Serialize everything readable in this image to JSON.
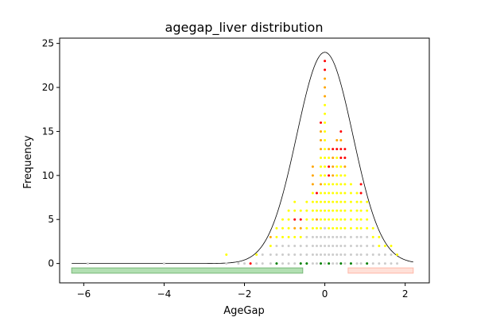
{
  "chart_data": {
    "type": "scatter",
    "title": "agegap_liver distribution",
    "xlabel": "AgeGap",
    "ylabel": "Frequency",
    "xlim": [
      -6.6,
      2.6
    ],
    "ylim": [
      -2.2,
      25.6
    ],
    "x_ticks": [
      -6,
      -4,
      -2,
      0,
      2
    ],
    "x_tick_labels": [
      "−6",
      "−4",
      "−2",
      "0",
      "2"
    ],
    "y_ticks": [
      0,
      5,
      10,
      15,
      20,
      25
    ],
    "y_tick_labels": [
      "0",
      "5",
      "10",
      "15",
      "20",
      "25"
    ],
    "grid": false,
    "colors": {
      "curve": "#000000",
      "normal": "#cccccc",
      "mild": "#ffff00",
      "moderate": "#ffa500",
      "high": "#ff0000",
      "low": "#008000",
      "negative_band_fill": "#b2dfb2",
      "negative_band_edge": "#78b878",
      "positive_band_fill": "#ffe0d8",
      "positive_band_edge": "#ffb8a8"
    },
    "bands": [
      {
        "x_range": [
          -6.3,
          -0.55
        ],
        "y_range": [
          -1.1,
          -0.5
        ],
        "color": "negative_band"
      },
      {
        "x_range": [
          0.58,
          2.2
        ],
        "y_range": [
          -1.1,
          -0.5
        ],
        "color": "positive_band"
      }
    ],
    "curve": {
      "type": "normal",
      "mean": 0.0,
      "sd": 0.7,
      "peak": 24,
      "x_range": [
        -6.3,
        2.2
      ]
    },
    "columns": [
      {
        "x": -5.9,
        "count": 0,
        "colors": [
          "normal"
        ]
      },
      {
        "x": -4.0,
        "count": 0,
        "colors": [
          "normal"
        ]
      },
      {
        "x": -2.45,
        "count": 1,
        "colors": [
          "normal",
          "mild"
        ]
      },
      {
        "x": -2.15,
        "count": 0,
        "colors": [
          "normal"
        ]
      },
      {
        "x": -2.0,
        "count": 0,
        "colors": [
          "normal"
        ]
      },
      {
        "x": -1.85,
        "count": 0,
        "colors": [
          "high"
        ]
      },
      {
        "x": -1.7,
        "count": 1,
        "colors": [
          "normal",
          "mild"
        ]
      },
      {
        "x": -1.55,
        "count": 1,
        "colors": [
          "normal",
          "normal"
        ]
      },
      {
        "x": -1.35,
        "count": 3,
        "colors": [
          "normal",
          "normal",
          "mild",
          "moderate"
        ]
      },
      {
        "x": -1.2,
        "count": 4,
        "colors": [
          "green",
          "normal",
          "normal",
          "mild",
          "mild"
        ]
      },
      {
        "x": -1.05,
        "count": 5,
        "colors": [
          "normal",
          "normal",
          "normal",
          "mild",
          "mild",
          "mild"
        ]
      },
      {
        "x": -0.9,
        "count": 6,
        "colors": [
          "normal",
          "normal",
          "normal",
          "mild",
          "mild",
          "mild",
          "mild"
        ]
      },
      {
        "x": -0.75,
        "count": 7,
        "colors": [
          "normal",
          "normal",
          "normal",
          "mild",
          "moderate",
          "high",
          "mild",
          "mild"
        ]
      },
      {
        "x": -0.6,
        "count": 6,
        "colors": [
          "green",
          "normal",
          "normal",
          "mild",
          "moderate",
          "high",
          "mild"
        ]
      },
      {
        "x": -0.45,
        "count": 7,
        "colors": [
          "green",
          "normal",
          "normal",
          "normal",
          "mild",
          "mild",
          "mild",
          "mild"
        ]
      },
      {
        "x": -0.3,
        "count": 11,
        "colors": [
          "normal",
          "normal",
          "normal",
          "normal",
          "mild",
          "mild",
          "mild",
          "mild",
          "mild",
          "moderate",
          "moderate",
          "moderate"
        ]
      },
      {
        "x": -0.2,
        "count": 8,
        "colors": [
          "normal",
          "normal",
          "normal",
          "normal",
          "mild",
          "moderate",
          "mild",
          "mild",
          "high"
        ]
      },
      {
        "x": -0.1,
        "count": 16,
        "colors": [
          "green",
          "normal",
          "normal",
          "normal",
          "mild",
          "mild",
          "mild",
          "mild",
          "mild",
          "moderate",
          "mild",
          "mild",
          "mild",
          "moderate",
          "moderate",
          "moderate",
          "high"
        ]
      },
      {
        "x": 0.0,
        "count": 23,
        "colors": [
          "normal",
          "normal",
          "normal",
          "normal",
          "normal",
          "mild",
          "mild",
          "mild",
          "mild",
          "mild",
          "mild",
          "mild",
          "mild",
          "mild",
          "mild",
          "mild",
          "mild",
          "mild",
          "mild",
          "moderate",
          "moderate",
          "moderate",
          "high",
          "high"
        ]
      },
      {
        "x": 0.1,
        "count": 13,
        "colors": [
          "green",
          "normal",
          "normal",
          "normal",
          "mild",
          "mild",
          "mild",
          "mild",
          "mild",
          "mild",
          "high",
          "high",
          "mild",
          "moderate"
        ]
      },
      {
        "x": 0.2,
        "count": 13,
        "colors": [
          "normal",
          "normal",
          "normal",
          "normal",
          "mild",
          "mild",
          "mild",
          "mild",
          "mild",
          "mild",
          "moderate",
          "moderate",
          "moderate",
          "high"
        ]
      },
      {
        "x": 0.3,
        "count": 14,
        "colors": [
          "normal",
          "normal",
          "normal",
          "normal",
          "mild",
          "mild",
          "mild",
          "mild",
          "mild",
          "mild",
          "mild",
          "mild",
          "mild",
          "high",
          "moderate"
        ]
      },
      {
        "x": 0.4,
        "count": 15,
        "colors": [
          "green",
          "normal",
          "normal",
          "normal",
          "mild",
          "mild",
          "mild",
          "mild",
          "mild",
          "mild",
          "mild",
          "mild",
          "high",
          "high",
          "moderate",
          "high"
        ]
      },
      {
        "x": 0.5,
        "count": 13,
        "colors": [
          "normal",
          "normal",
          "normal",
          "normal",
          "mild",
          "mild",
          "mild",
          "mild",
          "mild",
          "mild",
          "mild",
          "moderate",
          "high",
          "high"
        ]
      },
      {
        "x": 0.65,
        "count": 9,
        "colors": [
          "green",
          "normal",
          "normal",
          "normal",
          "mild",
          "mild",
          "mild",
          "mild",
          "mild",
          "mild"
        ]
      },
      {
        "x": 0.8,
        "count": 8,
        "colors": [
          "normal",
          "normal",
          "normal",
          "normal",
          "mild",
          "mild",
          "mild",
          "mild",
          "mild"
        ]
      },
      {
        "x": 0.9,
        "count": 9,
        "colors": [
          "normal",
          "normal",
          "normal",
          "normal",
          "mild",
          "mild",
          "mild",
          "mild",
          "high",
          "high"
        ]
      },
      {
        "x": 1.05,
        "count": 7,
        "colors": [
          "green",
          "normal",
          "normal",
          "normal",
          "mild",
          "mild",
          "mild",
          "mild"
        ]
      },
      {
        "x": 1.2,
        "count": 4,
        "colors": [
          "normal",
          "normal",
          "normal",
          "mild",
          "mild"
        ]
      },
      {
        "x": 1.35,
        "count": 3,
        "colors": [
          "normal",
          "normal",
          "mild",
          "mild"
        ]
      },
      {
        "x": 1.5,
        "count": 2,
        "colors": [
          "normal",
          "normal",
          "mild"
        ]
      },
      {
        "x": 1.65,
        "count": 2,
        "colors": [
          "normal",
          "normal",
          "mild"
        ]
      },
      {
        "x": 1.8,
        "count": 1,
        "colors": [
          "normal",
          "mild"
        ]
      }
    ]
  }
}
